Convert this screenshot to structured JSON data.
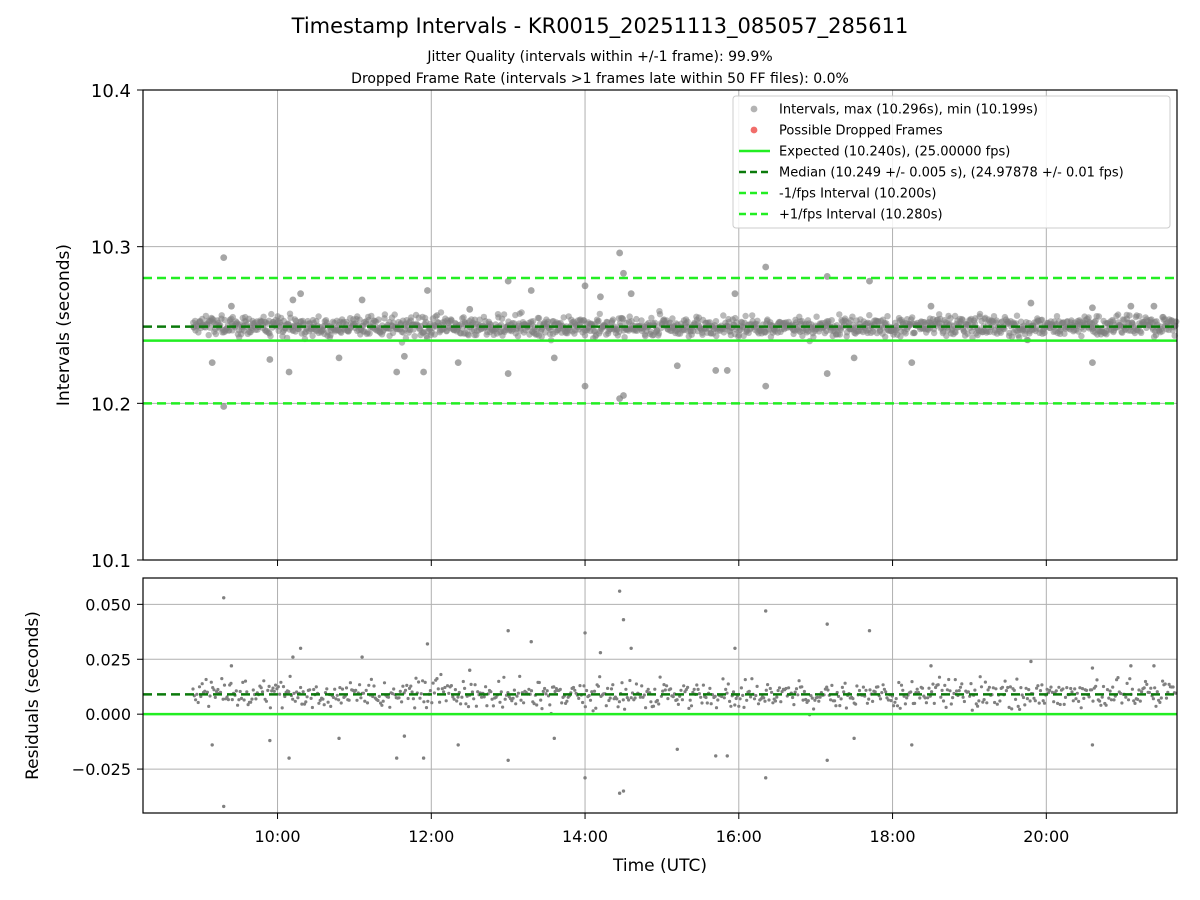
{
  "chart_data": [
    {
      "panel": "intervals",
      "type": "scatter",
      "title": "Timestamp Intervals - KR0015_20251113_085057_285611",
      "subtitles": [
        "Jitter Quality (intervals within +/-1 frame): 99.9%",
        "Dropped Frame Rate (intervals >1 frames late within 50 FF files): 0.0%"
      ],
      "xlabel": "",
      "ylabel": "Intervals (seconds)",
      "xlim_hours": [
        8.25,
        21.7
      ],
      "ylim": [
        10.1,
        10.4
      ],
      "yticks": [
        10.1,
        10.2,
        10.3,
        10.4
      ],
      "ytick_labels": [
        "10.1",
        "10.2",
        "10.3",
        "10.4"
      ],
      "xticks_hours": [
        10,
        12,
        14,
        16,
        18,
        20
      ],
      "grid": true,
      "legend_position": "top-right",
      "legend": [
        {
          "label": "Intervals, max (10.296s), min (10.199s)",
          "kind": "marker",
          "color": "#808080"
        },
        {
          "label": "Possible Dropped Frames",
          "kind": "marker",
          "color": "#ef5350"
        },
        {
          "label": "Expected (10.240s), (25.00000 fps)",
          "kind": "line",
          "style": "solid",
          "color": "#22ee22"
        },
        {
          "label": "Median (10.249 +/- 0.005 s), (24.97878 +/- 0.01 fps)",
          "kind": "line",
          "style": "dashed",
          "color": "#0b7a0b"
        },
        {
          "label": "-1/fps Interval (10.200s)",
          "kind": "line",
          "style": "dashed",
          "color": "#22ee22"
        },
        {
          "label": "+1/fps Interval (10.280s)",
          "kind": "line",
          "style": "dashed",
          "color": "#22ee22"
        }
      ],
      "reference_lines": {
        "expected": 10.24,
        "median": 10.249,
        "minus_one_fps": 10.2,
        "plus_one_fps": 10.28
      },
      "time_range_hours": [
        8.9,
        21.7
      ],
      "point_interval_seconds": 10.24,
      "interval_max": 10.296,
      "interval_min": 10.199,
      "outliers": [
        [
          9.3,
          10.293
        ],
        [
          9.3,
          10.198
        ],
        [
          9.4,
          10.262
        ],
        [
          9.15,
          10.226
        ],
        [
          9.9,
          10.228
        ],
        [
          10.15,
          10.22
        ],
        [
          10.2,
          10.266
        ],
        [
          10.3,
          10.27
        ],
        [
          10.8,
          10.229
        ],
        [
          11.1,
          10.266
        ],
        [
          11.55,
          10.22
        ],
        [
          11.65,
          10.23
        ],
        [
          11.9,
          10.22
        ],
        [
          11.95,
          10.272
        ],
        [
          12.35,
          10.226
        ],
        [
          12.5,
          10.26
        ],
        [
          13.0,
          10.278
        ],
        [
          13.0,
          10.219
        ],
        [
          13.3,
          10.272
        ],
        [
          13.6,
          10.229
        ],
        [
          14.0,
          10.275
        ],
        [
          14.0,
          10.211
        ],
        [
          14.2,
          10.268
        ],
        [
          14.45,
          10.296
        ],
        [
          14.5,
          10.283
        ],
        [
          14.45,
          10.203
        ],
        [
          14.5,
          10.205
        ],
        [
          14.6,
          10.27
        ],
        [
          15.2,
          10.224
        ],
        [
          15.7,
          10.221
        ],
        [
          15.85,
          10.221
        ],
        [
          15.95,
          10.27
        ],
        [
          16.35,
          10.287
        ],
        [
          16.35,
          10.211
        ],
        [
          17.15,
          10.281
        ],
        [
          17.15,
          10.219
        ],
        [
          17.5,
          10.229
        ],
        [
          17.7,
          10.278
        ],
        [
          18.25,
          10.226
        ],
        [
          18.5,
          10.262
        ],
        [
          19.8,
          10.264
        ],
        [
          20.6,
          10.261
        ],
        [
          20.6,
          10.226
        ],
        [
          21.1,
          10.262
        ],
        [
          21.4,
          10.262
        ]
      ]
    },
    {
      "panel": "residuals",
      "type": "scatter",
      "xlabel": "Time (UTC)",
      "ylabel": "Residuals (seconds)",
      "xlim_hours": [
        8.25,
        21.7
      ],
      "ylim": [
        -0.045,
        0.062
      ],
      "yticks": [
        -0.025,
        0.0,
        0.025,
        0.05
      ],
      "ytick_labels": [
        "−0.025",
        "0.000",
        "0.025",
        "0.050"
      ],
      "xticks_hours": [
        10,
        12,
        14,
        16,
        18,
        20
      ],
      "xtick_labels": [
        "10:00",
        "12:00",
        "14:00",
        "16:00",
        "18:00",
        "20:00"
      ],
      "grid": true,
      "reference_lines": {
        "zero": 0.0,
        "median_offset": 0.009
      },
      "outliers": [
        [
          9.3,
          0.053
        ],
        [
          9.3,
          -0.042
        ],
        [
          9.4,
          0.022
        ],
        [
          9.15,
          -0.014
        ],
        [
          9.9,
          -0.012
        ],
        [
          10.15,
          -0.02
        ],
        [
          10.2,
          0.026
        ],
        [
          10.3,
          0.03
        ],
        [
          10.8,
          -0.011
        ],
        [
          11.1,
          0.026
        ],
        [
          11.55,
          -0.02
        ],
        [
          11.65,
          -0.01
        ],
        [
          11.9,
          -0.02
        ],
        [
          11.95,
          0.032
        ],
        [
          12.35,
          -0.014
        ],
        [
          12.5,
          0.02
        ],
        [
          13.0,
          0.038
        ],
        [
          13.0,
          -0.021
        ],
        [
          13.3,
          0.033
        ],
        [
          13.6,
          -0.011
        ],
        [
          14.0,
          0.037
        ],
        [
          14.0,
          -0.029
        ],
        [
          14.2,
          0.028
        ],
        [
          14.45,
          0.056
        ],
        [
          14.5,
          0.043
        ],
        [
          14.45,
          -0.036
        ],
        [
          14.5,
          -0.035
        ],
        [
          14.6,
          0.03
        ],
        [
          15.2,
          -0.016
        ],
        [
          15.7,
          -0.019
        ],
        [
          15.85,
          -0.019
        ],
        [
          15.95,
          0.03
        ],
        [
          16.35,
          0.047
        ],
        [
          16.35,
          -0.029
        ],
        [
          17.15,
          0.041
        ],
        [
          17.15,
          -0.021
        ],
        [
          17.5,
          -0.011
        ],
        [
          17.7,
          0.038
        ],
        [
          18.25,
          -0.014
        ],
        [
          18.5,
          0.022
        ],
        [
          19.8,
          0.024
        ],
        [
          20.6,
          0.021
        ],
        [
          20.6,
          -0.014
        ],
        [
          21.1,
          0.022
        ],
        [
          21.4,
          0.022
        ]
      ]
    }
  ],
  "colors": {
    "points": "#808080",
    "dropped": "#ef5350",
    "expected": "#22ee22",
    "median": "#0b7a0b",
    "grid": "#b0b0b0"
  }
}
